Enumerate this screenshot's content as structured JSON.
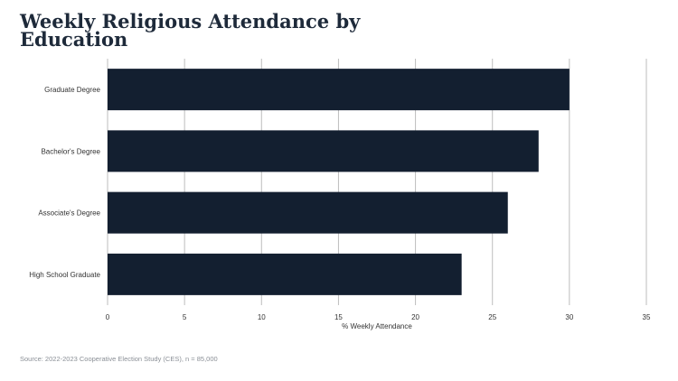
{
  "title": "Weekly Religious Attendance by Education",
  "source": "Source: 2022-2023 Cooperative Election Study (CES), n = 85,000",
  "colors": {
    "bar": "#131f30",
    "grid": "#bdbdbd",
    "text": "#333333",
    "title": "#1e2a3a"
  },
  "chart_data": {
    "type": "bar",
    "orientation": "horizontal",
    "title": "Weekly Religious Attendance by Education",
    "categories": [
      "Graduate Degree",
      "Bachelor's Degree",
      "Associate's Degree",
      "High School Graduate"
    ],
    "values": [
      30,
      28,
      26,
      23
    ],
    "xlabel": "% Weekly Attendance",
    "ylabel": "",
    "xlim": [
      0,
      35
    ],
    "xticks": [
      0,
      5,
      10,
      15,
      20,
      25,
      30,
      35
    ],
    "grid": true,
    "legend": "none"
  }
}
